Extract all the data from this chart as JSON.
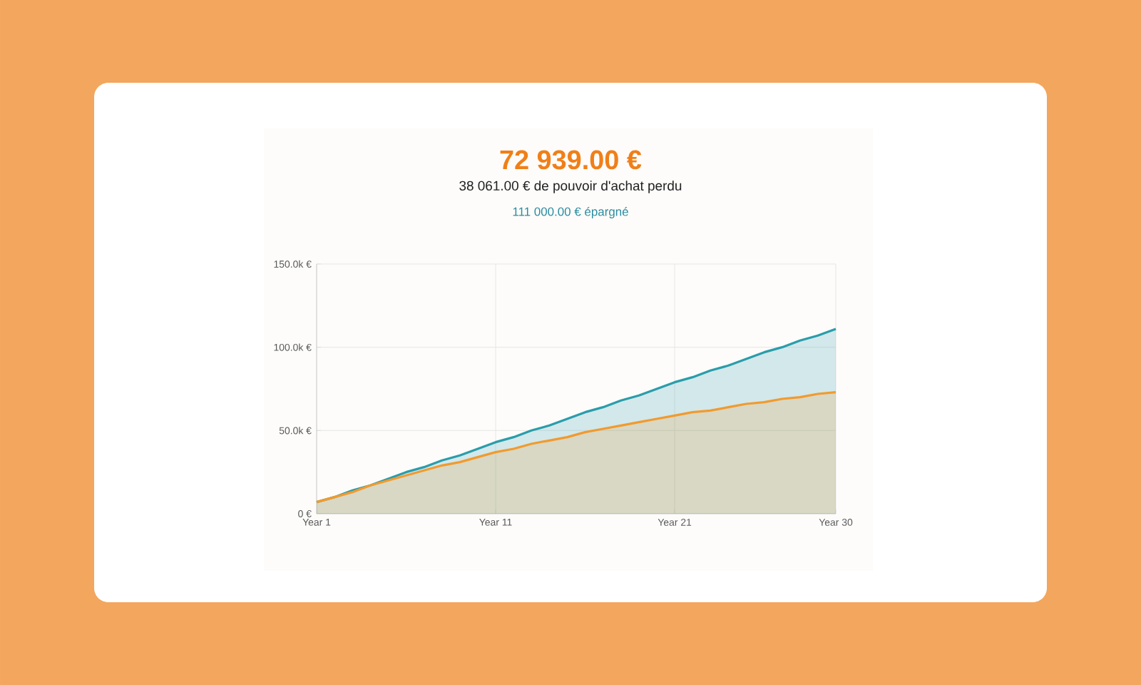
{
  "chart_data": {
    "type": "area",
    "title": "72 939.00 €",
    "subtitle": "38 061.00 € de pouvoir d'achat perdu",
    "annotations": [
      "111 000.00 € épargné"
    ],
    "categories": [
      "Year 1",
      null,
      null,
      null,
      null,
      null,
      null,
      null,
      null,
      null,
      "Year 11",
      null,
      null,
      null,
      null,
      null,
      null,
      null,
      null,
      null,
      "Year 21",
      null,
      null,
      null,
      null,
      null,
      null,
      null,
      null,
      "Year 30"
    ],
    "series": [
      {
        "color": "#2a9dab",
        "values": [
          7000,
          10000,
          14000,
          17000,
          21000,
          25000,
          28000,
          32000,
          35000,
          39000,
          43000,
          46000,
          50000,
          53000,
          57000,
          61000,
          64000,
          68000,
          71000,
          75000,
          79000,
          82000,
          86000,
          89000,
          93000,
          97000,
          100000,
          104000,
          107000,
          111000
        ]
      },
      {
        "color": "#f29a2e",
        "values": [
          7000,
          10000,
          13000,
          17000,
          20000,
          23000,
          26000,
          29000,
          31000,
          34000,
          37000,
          39000,
          42000,
          44000,
          46000,
          49000,
          51000,
          53000,
          55000,
          57000,
          59000,
          61000,
          62000,
          64000,
          66000,
          67000,
          69000,
          70000,
          72000,
          73000
        ]
      }
    ],
    "ylim": [
      0,
      150000
    ],
    "yticks": [
      {
        "value": 0,
        "label": "0 €"
      },
      {
        "value": 50000,
        "label": "50.0k €"
      },
      {
        "value": 100000,
        "label": "100.0k €"
      },
      {
        "value": 150000,
        "label": "150.0k €"
      }
    ],
    "grid": true,
    "marker": "none",
    "line_style": "solid"
  }
}
